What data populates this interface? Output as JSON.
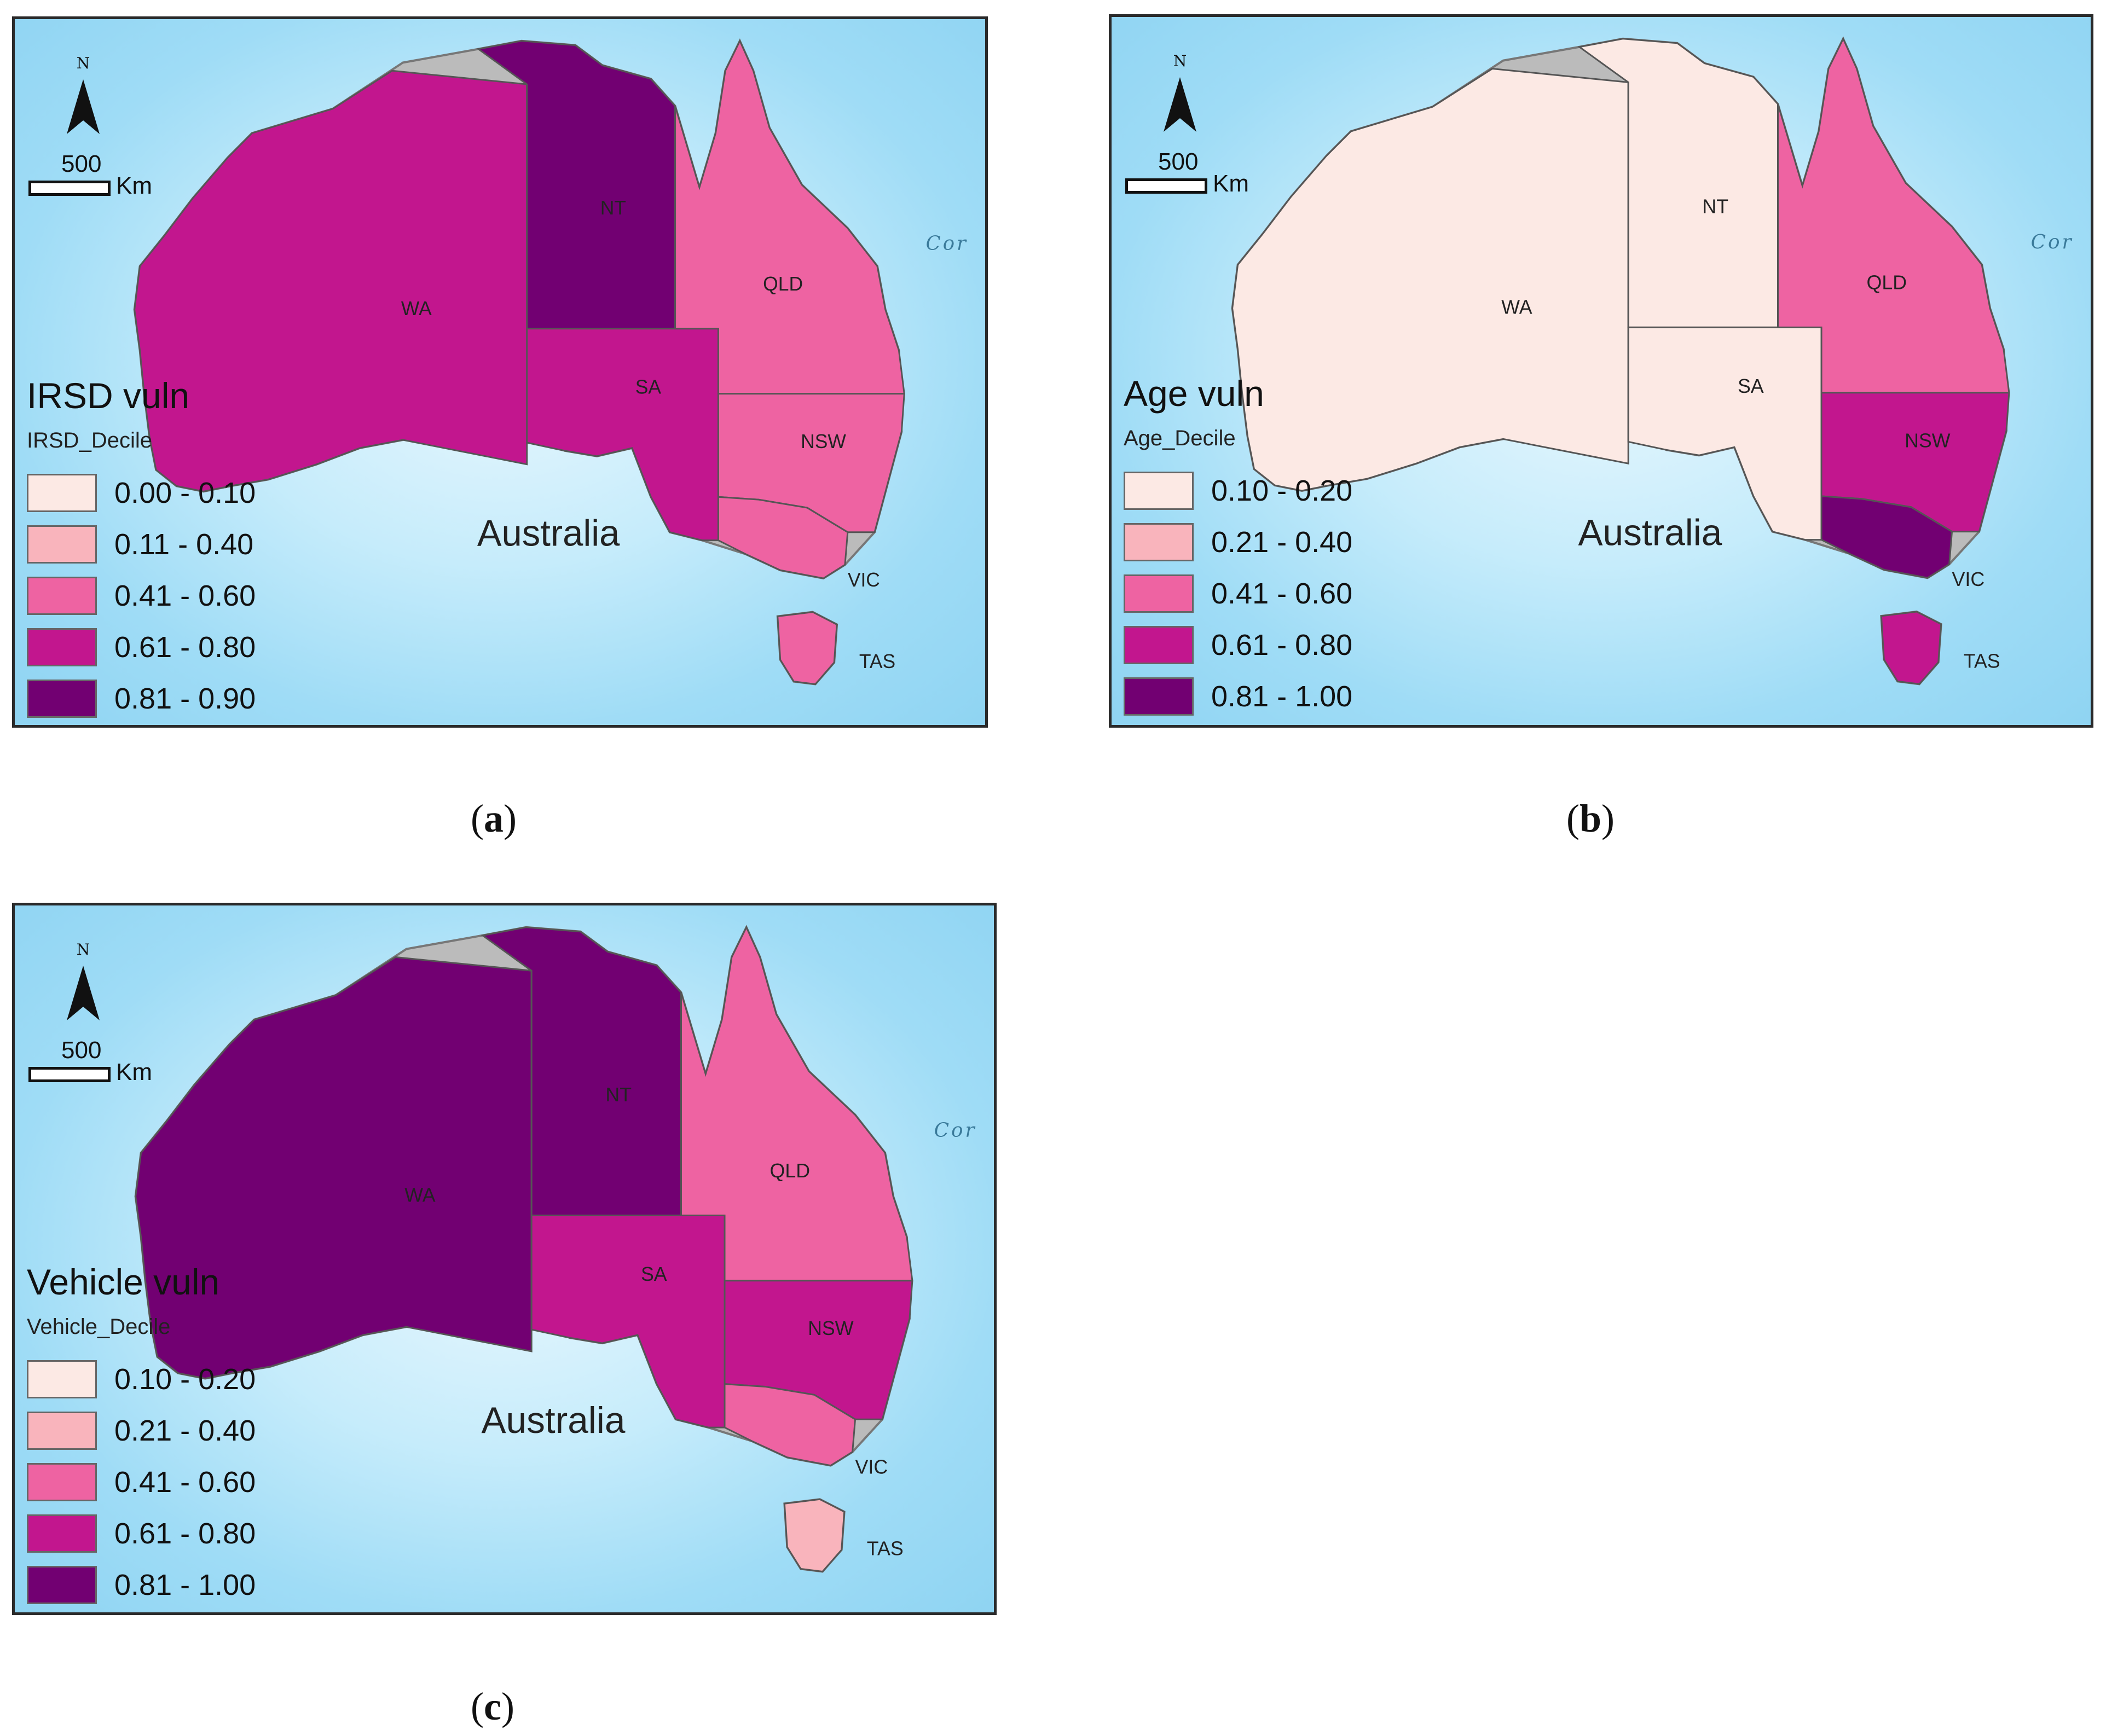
{
  "maps": [
    {
      "id": "a",
      "caption": "a",
      "north_label": "N",
      "scale_value": "500",
      "scale_unit": "Km",
      "country_label": "Australia",
      "sea_label": "Cor",
      "states": [
        "WA",
        "NT",
        "SA",
        "QLD",
        "NSW",
        "VIC",
        "TAS"
      ],
      "legend": {
        "title": "IRSD vuln",
        "field": "IRSD_Decile",
        "items": [
          {
            "label": "0.00 - 0.10",
            "color": "#fce9e4"
          },
          {
            "label": "0.11 - 0.40",
            "color": "#f9b4bc"
          },
          {
            "label": "0.41 - 0.60",
            "color": "#ee63a2"
          },
          {
            "label": "0.61 - 0.80",
            "color": "#c2168e"
          },
          {
            "label": "0.81 - 0.90",
            "color": "#720072"
          }
        ]
      },
      "regions": {
        "WA": 3,
        "NT": 4,
        "SA": 3,
        "QLD": 2,
        "NSW": 2,
        "VIC": 2,
        "TAS": 2
      }
    },
    {
      "id": "b",
      "caption": "b",
      "north_label": "N",
      "scale_value": "500",
      "scale_unit": "Km",
      "country_label": "Australia",
      "sea_label": "Cor",
      "states": [
        "WA",
        "NT",
        "SA",
        "QLD",
        "NSW",
        "VIC",
        "TAS"
      ],
      "legend": {
        "title": "Age vuln",
        "field": "Age_Decile",
        "items": [
          {
            "label": "0.10 - 0.20",
            "color": "#fce9e4"
          },
          {
            "label": "0.21 - 0.40",
            "color": "#f9b4bc"
          },
          {
            "label": "0.41 - 0.60",
            "color": "#ee63a2"
          },
          {
            "label": "0.61 - 0.80",
            "color": "#c2168e"
          },
          {
            "label": "0.81 - 1.00",
            "color": "#720072"
          }
        ]
      },
      "regions": {
        "WA": 0,
        "NT": 0,
        "SA": 0,
        "QLD": 2,
        "NSW": 3,
        "VIC": 4,
        "TAS": 3
      }
    },
    {
      "id": "c",
      "caption": "c",
      "north_label": "N",
      "scale_value": "500",
      "scale_unit": "Km",
      "country_label": "Australia",
      "sea_label": "Cor",
      "states": [
        "WA",
        "NT",
        "SA",
        "QLD",
        "NSW",
        "VIC",
        "TAS"
      ],
      "legend": {
        "title": "Vehicle vuln",
        "field": "Vehicle_Decile",
        "items": [
          {
            "label": "0.10 - 0.20",
            "color": "#fce9e4"
          },
          {
            "label": "0.21 - 0.40",
            "color": "#f9b4bc"
          },
          {
            "label": "0.41 - 0.60",
            "color": "#ee63a2"
          },
          {
            "label": "0.61 - 0.80",
            "color": "#c2168e"
          },
          {
            "label": "0.81 - 1.00",
            "color": "#720072"
          }
        ]
      },
      "regions": {
        "WA": 4,
        "NT": 4,
        "SA": 3,
        "QLD": 2,
        "NSW": 3,
        "VIC": 2,
        "TAS": 1
      }
    }
  ]
}
